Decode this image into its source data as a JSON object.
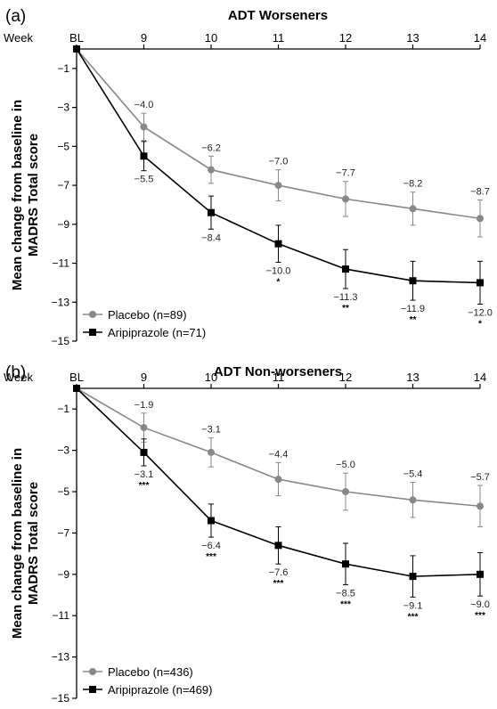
{
  "chart_data": [
    {
      "type": "line",
      "panel_label": "(a)",
      "title": "ADT Worseners",
      "week_label": "Week",
      "ylabel": "Mean change from baseline in MADRS Total score",
      "ylabel_lines": [
        "Mean change from baseline in",
        "MADRS Total score"
      ],
      "categories": [
        "BL",
        "9",
        "10",
        "11",
        "12",
        "13",
        "14"
      ],
      "yticks": [
        "−1",
        "−3",
        "−5",
        "−7",
        "−9",
        "−11",
        "−13",
        "−15"
      ],
      "ytick_values": [
        -1,
        -3,
        -5,
        -7,
        -9,
        -11,
        -13,
        -15
      ],
      "ylim": [
        -15,
        1
      ],
      "legend_position": "bottom-left",
      "series": [
        {
          "name": "Placebo (n=89)",
          "color": "#888888",
          "marker": "circle",
          "values": [
            0,
            -4.0,
            -6.2,
            -7.0,
            -7.7,
            -8.2,
            -8.7
          ],
          "err": [
            0,
            0.7,
            0.7,
            0.8,
            0.9,
            0.85,
            0.95
          ],
          "labels": [
            "",
            "−4.0",
            "−6.2",
            "−7.0",
            "−7.7",
            "−8.2",
            "−8.7"
          ],
          "sig": [
            "",
            "",
            "",
            "",
            "",
            "",
            ""
          ]
        },
        {
          "name": "Aripiprazole (n=71)",
          "color": "#000000",
          "marker": "square",
          "values": [
            0,
            -5.5,
            -8.4,
            -10.0,
            -11.3,
            -11.9,
            -12.0
          ],
          "err": [
            0,
            0.75,
            0.85,
            0.95,
            1.0,
            1.0,
            1.1
          ],
          "labels": [
            "",
            "−5.5",
            "−8.4",
            "−10.0",
            "−11.3",
            "−11.9",
            "−12.0"
          ],
          "sig": [
            "",
            "",
            "",
            "*",
            "**",
            "**",
            "*"
          ]
        }
      ]
    },
    {
      "type": "line",
      "panel_label": "(b)",
      "title": "ADT Non-worseners",
      "week_label": "Week",
      "ylabel": "Mean change from baseline in MADRS Total score",
      "ylabel_lines": [
        "Mean change from baseline in",
        "MADRS Total score"
      ],
      "categories": [
        "BL",
        "9",
        "10",
        "11",
        "12",
        "13",
        "14"
      ],
      "yticks": [
        "−1",
        "−3",
        "−5",
        "−7",
        "−9",
        "−11",
        "−13",
        "−15"
      ],
      "ytick_values": [
        -1,
        -3,
        -5,
        -7,
        -9,
        -11,
        -13,
        -15
      ],
      "ylim": [
        -15,
        1
      ],
      "legend_position": "bottom-left",
      "series": [
        {
          "name": "Placebo (n=436)",
          "color": "#888888",
          "marker": "circle",
          "values": [
            0,
            -1.9,
            -3.1,
            -4.4,
            -5.0,
            -5.4,
            -5.7
          ],
          "err": [
            0,
            0.7,
            0.7,
            0.8,
            0.9,
            0.85,
            1.0
          ],
          "labels": [
            "",
            "−1.9",
            "−3.1",
            "−4.4",
            "−5.0",
            "−5.4",
            "−5.7"
          ],
          "sig": [
            "",
            "",
            "",
            "",
            "",
            "",
            ""
          ]
        },
        {
          "name": "Aripiprazole (n=469)",
          "color": "#000000",
          "marker": "square",
          "values": [
            0,
            -3.1,
            -6.4,
            -7.6,
            -8.5,
            -9.1,
            -9.0
          ],
          "err": [
            0,
            0.65,
            0.8,
            0.9,
            1.0,
            1.0,
            1.05
          ],
          "labels": [
            "",
            "−3.1",
            "−6.4",
            "−7.6",
            "−8.5",
            "−9.1",
            "−9.0"
          ],
          "sig": [
            "",
            "***",
            "***",
            "***",
            "***",
            "***",
            "***"
          ]
        }
      ]
    }
  ]
}
